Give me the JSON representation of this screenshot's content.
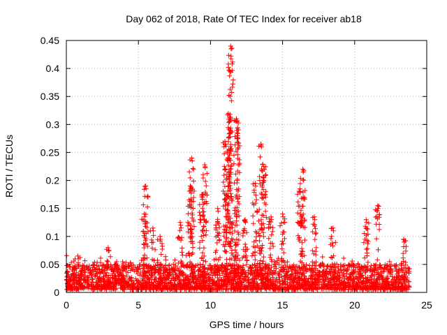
{
  "chart_data": {
    "type": "scatter",
    "title": "Day 062 of 2018, Rate Of TEC Index for receiver ab18",
    "xlabel": "GPS time / hours",
    "ylabel": "ROTI / TECUs",
    "xlim": [
      0,
      25
    ],
    "ylim": [
      0,
      0.45
    ],
    "xticks": [
      0,
      5,
      10,
      15,
      20,
      25
    ],
    "yticks": [
      0,
      0.05,
      0.1,
      0.15,
      0.2,
      0.25,
      0.3,
      0.35,
      0.4,
      0.45
    ],
    "grid": true,
    "marker": "+",
    "series": [
      {
        "name": "ROTI",
        "color": "#ff0000",
        "x_range": [
          0,
          23.8
        ],
        "background_level": [
          0.005,
          0.05
        ],
        "spikes": [
          {
            "x": 0.8,
            "peak": 0.065
          },
          {
            "x": 2.9,
            "peak": 0.08
          },
          {
            "x": 5.4,
            "peak": 0.14
          },
          {
            "x": 5.5,
            "peak": 0.19
          },
          {
            "x": 6.0,
            "peak": 0.115
          },
          {
            "x": 6.5,
            "peak": 0.1
          },
          {
            "x": 7.9,
            "peak": 0.125
          },
          {
            "x": 8.6,
            "peak": 0.19
          },
          {
            "x": 8.7,
            "peak": 0.24
          },
          {
            "x": 9.4,
            "peak": 0.175
          },
          {
            "x": 9.6,
            "peak": 0.228
          },
          {
            "x": 10.5,
            "peak": 0.15
          },
          {
            "x": 11.0,
            "peak": 0.27
          },
          {
            "x": 11.2,
            "peak": 0.24
          },
          {
            "x": 11.35,
            "peak": 0.318
          },
          {
            "x": 11.4,
            "peak": 0.44
          },
          {
            "x": 11.8,
            "peak": 0.31
          },
          {
            "x": 11.85,
            "peak": 0.285
          },
          {
            "x": 12.4,
            "peak": 0.13
          },
          {
            "x": 13.1,
            "peak": 0.195
          },
          {
            "x": 13.5,
            "peak": 0.265
          },
          {
            "x": 13.7,
            "peak": 0.225
          },
          {
            "x": 14.2,
            "peak": 0.135
          },
          {
            "x": 15.0,
            "peak": 0.14
          },
          {
            "x": 16.2,
            "peak": 0.185
          },
          {
            "x": 16.4,
            "peak": 0.22
          },
          {
            "x": 17.2,
            "peak": 0.135
          },
          {
            "x": 18.5,
            "peak": 0.115
          },
          {
            "x": 20.8,
            "peak": 0.13
          },
          {
            "x": 21.6,
            "peak": 0.155
          },
          {
            "x": 23.4,
            "peak": 0.095
          }
        ]
      }
    ]
  }
}
